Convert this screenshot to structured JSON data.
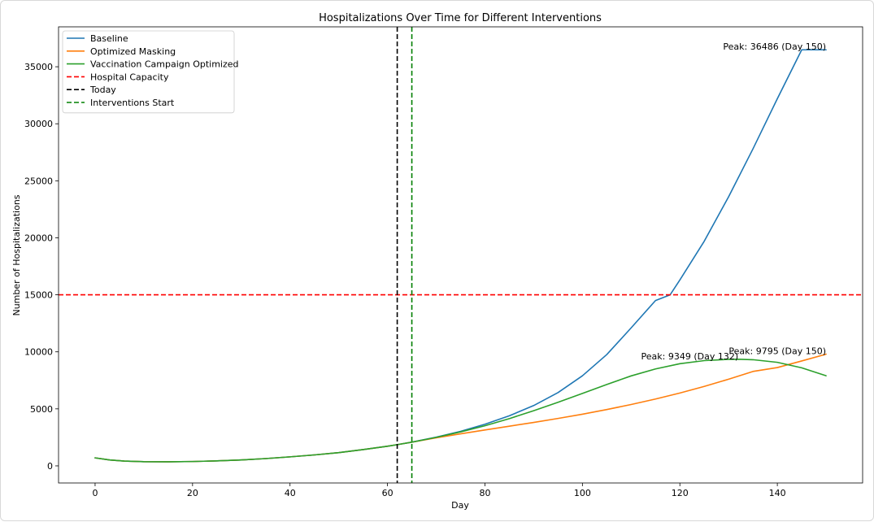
{
  "chart_data": {
    "type": "line",
    "title": "Hospitalizations Over Time for Different Interventions",
    "xlabel": "Day",
    "ylabel": "Number of Hospitalizations",
    "xlim": [
      -7.5,
      157.5
    ],
    "ylim": [
      -1500,
      38500
    ],
    "xticks": [
      0,
      20,
      40,
      60,
      80,
      100,
      120,
      140
    ],
    "yticks": [
      0,
      5000,
      10000,
      15000,
      20000,
      25000,
      30000,
      35000
    ],
    "grid": false,
    "legend": "top-left",
    "series": [
      {
        "name": "Baseline",
        "color": "#1f77b4",
        "x": [
          0,
          3,
          6,
          10,
          15,
          20,
          25,
          30,
          35,
          40,
          45,
          50,
          55,
          60,
          62,
          65,
          70,
          75,
          80,
          85,
          90,
          95,
          100,
          105,
          110,
          115,
          118,
          120,
          125,
          130,
          135,
          140,
          145,
          150
        ],
        "y": [
          700,
          520,
          420,
          370,
          360,
          380,
          440,
          520,
          640,
          790,
          960,
          1160,
          1430,
          1720,
          1860,
          2080,
          2520,
          3030,
          3650,
          4390,
          5290,
          6430,
          7900,
          9760,
          12100,
          14500,
          15000,
          16300,
          19700,
          23600,
          27800,
          32200,
          36486,
          36486
        ]
      },
      {
        "name": "Optimized Masking",
        "color": "#ff7f0e",
        "x": [
          0,
          3,
          6,
          10,
          15,
          20,
          25,
          30,
          35,
          40,
          45,
          50,
          55,
          60,
          62,
          65,
          70,
          75,
          80,
          85,
          90,
          95,
          100,
          105,
          110,
          115,
          120,
          125,
          130,
          135,
          140,
          145,
          150
        ],
        "y": [
          700,
          520,
          420,
          370,
          360,
          380,
          440,
          520,
          640,
          790,
          960,
          1160,
          1430,
          1720,
          1860,
          2080,
          2460,
          2810,
          3150,
          3480,
          3810,
          4160,
          4530,
          4940,
          5380,
          5860,
          6390,
          6970,
          7600,
          8280,
          8620,
          9200,
          9795
        ]
      },
      {
        "name": "Vaccination Campaign Optimized",
        "color": "#2ca02c",
        "x": [
          0,
          3,
          6,
          10,
          15,
          20,
          25,
          30,
          35,
          40,
          45,
          50,
          55,
          60,
          62,
          65,
          70,
          75,
          80,
          85,
          90,
          95,
          100,
          105,
          110,
          115,
          120,
          125,
          130,
          132,
          135,
          140,
          145,
          150
        ],
        "y": [
          700,
          520,
          420,
          370,
          360,
          380,
          440,
          520,
          640,
          790,
          960,
          1160,
          1430,
          1720,
          1860,
          2080,
          2500,
          2980,
          3520,
          4140,
          4840,
          5580,
          6350,
          7140,
          7890,
          8500,
          8960,
          9230,
          9340,
          9349,
          9310,
          9080,
          8600,
          7900
        ]
      }
    ],
    "hlines": [
      {
        "name": "Hospital Capacity",
        "y": 15000,
        "color": "#ff0000"
      }
    ],
    "vlines": [
      {
        "name": "Today",
        "x": 62,
        "color": "#000000"
      },
      {
        "name": "Interventions Start",
        "x": 65,
        "color": "#008000"
      }
    ],
    "annotations": [
      {
        "text": "Peak: 36486 (Day 150)",
        "x": 150,
        "y": 36486
      },
      {
        "text": "Peak: 9349 (Day 132)",
        "x": 132,
        "y": 9349
      },
      {
        "text": "Peak: 9795 (Day 150)",
        "x": 150,
        "y": 9795
      }
    ]
  }
}
